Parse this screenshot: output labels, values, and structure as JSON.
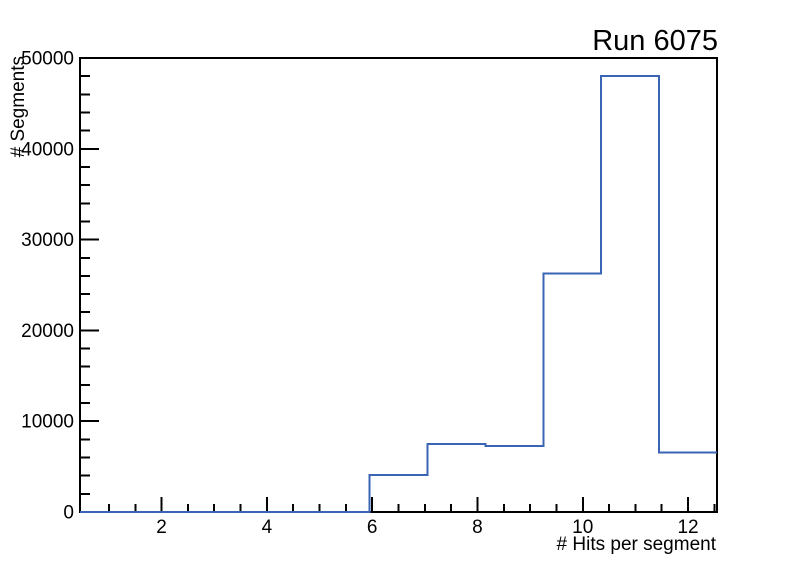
{
  "page": {
    "background": "#ffffff"
  },
  "chart_data": {
    "type": "line",
    "subtype": "step-histogram",
    "title": "Run 6075",
    "xlabel": "# Hits per segment",
    "ylabel": "# Segments",
    "xlim": [
      0.45,
      12.55
    ],
    "ylim": [
      0,
      50000
    ],
    "grid": false,
    "legend": "none",
    "colors": {
      "line": "#3a65b5",
      "axis": "#000000",
      "text": "#000000",
      "background": "#ffffff"
    },
    "bins": {
      "edges": [
        0.45,
        1.55,
        2.65,
        3.75,
        4.85,
        5.95,
        7.05,
        8.15,
        9.25,
        10.35,
        11.45,
        12.55
      ],
      "counts": [
        0,
        0,
        0,
        0,
        0,
        4100,
        7480,
        7260,
        26250,
        48000,
        6550
      ]
    },
    "x_ticks": {
      "major_values": [
        2,
        4,
        6,
        8,
        10,
        12
      ],
      "major_labels": [
        "2",
        "4",
        "6",
        "8",
        "10",
        "12"
      ],
      "minor_step": 0.5,
      "minor_start": 1.0,
      "minor_end": 12.5
    },
    "y_ticks": {
      "major_values": [
        0,
        10000,
        20000,
        30000,
        40000,
        50000
      ],
      "major_labels": [
        "0",
        "10000",
        "20000",
        "30000",
        "40000",
        "50000"
      ],
      "minor_step": 2000
    }
  }
}
